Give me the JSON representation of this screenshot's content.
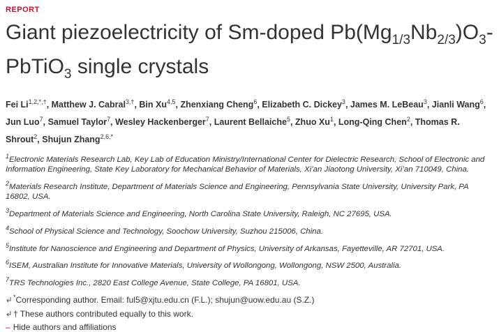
{
  "label": "REPORT",
  "title": [
    {
      "text": "Giant piezoelectricity of Sm-doped Pb(Mg"
    },
    {
      "sub": "1/3"
    },
    {
      "text": "Nb"
    },
    {
      "sub": "2/3"
    },
    {
      "text": ")O"
    },
    {
      "sub": "3"
    },
    {
      "text": "-PbTiO"
    },
    {
      "sub": "3"
    },
    {
      "text": " single crystals"
    }
  ],
  "authors": [
    {
      "name": "Fei Li",
      "sup": "1,2,*,†",
      "sep": ", "
    },
    {
      "name": "Matthew J. Cabral",
      "sup": "3,†",
      "sep": ", "
    },
    {
      "name": "Bin Xu",
      "sup": "4,5",
      "sep": ", "
    },
    {
      "name": "Zhenxiang Cheng",
      "sup": "6",
      "sep": ", "
    },
    {
      "name": "Elizabeth C. Dickey",
      "sup": "3",
      "sep": ", "
    },
    {
      "name": "James M. LeBeau",
      "sup": "3",
      "sep": ", "
    },
    {
      "name": "Jianli Wang",
      "sup": "6",
      "sep": ", "
    },
    {
      "name": "Jun Luo",
      "sup": "7",
      "sep": ", "
    },
    {
      "name": "Samuel Taylor",
      "sup": "7",
      "sep": ", "
    },
    {
      "name": "Wesley Hackenberger",
      "sup": "7",
      "sep": ", "
    },
    {
      "name": "Laurent Bellaiche",
      "sup": "5",
      "sep": ", "
    },
    {
      "name": "Zhuo Xu",
      "sup": "1",
      "sep": ", "
    },
    {
      "name": "Long-Qing Chen",
      "sup": "2",
      "sep": ", "
    },
    {
      "name": "Thomas R. Shrout",
      "sup": "2",
      "sep": ", "
    },
    {
      "name": "Shujun Zhang",
      "sup": "2,6,*"
    }
  ],
  "affiliations": [
    {
      "num": "1",
      "text": "Electronic Materials Research Lab, Key Lab of Education Ministry/International Center for Dielectric Research, School of Electronic and Information Engineering, State Key Laboratory for Mechanical Behavior of Materials, Xi’an Jiaotong University, Xi’an 710049, China."
    },
    {
      "num": "2",
      "text": "Materials Research Institute, Department of Materials Science and Engineering, Pennsylvania State University, University Park, PA 16802, USA."
    },
    {
      "num": "3",
      "text": "Department of Materials Science and Engineering, North Carolina State University, Raleigh, NC 27695, USA."
    },
    {
      "num": "4",
      "text": "School of Physical Science and Technology, Soochow University, Suzhou 215006, China."
    },
    {
      "num": "5",
      "text": "Institute for Nanoscience and Engineering and Department of Physics, University of Arkansas, Fayetteville, AR 72701, USA."
    },
    {
      "num": "6",
      "text": "ISEM, Australian Institute for Innovative Materials, University of Wollongong, Wollongong, NSW 2500, Australia."
    },
    {
      "num": "7",
      "text": "TRS Technologies Inc., 2820 East College Avenue, State College, PA 16801, USA."
    }
  ],
  "corresponding": {
    "symbol": "*",
    "text": "Corresponding author. Email: ",
    "email1": "ful5@xjtu.edu.cn",
    "note1": " (F.L.); ",
    "email2": "shujun@uow.edu.au",
    "note2": " (S.Z.)"
  },
  "equal": {
    "symbol": "†",
    "text": " These authors contributed equally to this work."
  },
  "toggle": "Hide authors and affiliations"
}
